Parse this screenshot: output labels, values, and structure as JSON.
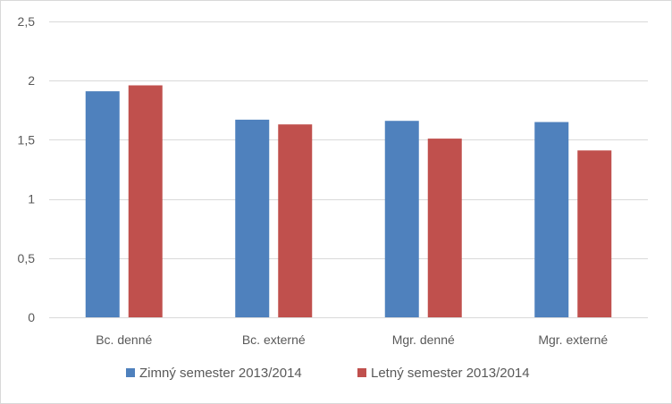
{
  "chart_data": {
    "type": "bar",
    "title": "",
    "xlabel": "",
    "ylabel": "",
    "categories": [
      "Bc. denné",
      "Bc. externé",
      "Mgr. denné",
      "Mgr. externé"
    ],
    "series": [
      {
        "name": "Zimný semester 2013/2014",
        "color": "#4f81bd",
        "values": [
          1.91,
          1.67,
          1.66,
          1.65
        ]
      },
      {
        "name": "Letný semester 2013/2014",
        "color": "#c0504d",
        "values": [
          1.96,
          1.63,
          1.51,
          1.41
        ]
      }
    ],
    "ylim": [
      0,
      2.5
    ],
    "yticks": [
      "0",
      "0,5",
      "1",
      "1,5",
      "2",
      "2,5"
    ],
    "ytick_values": [
      0,
      0.5,
      1,
      1.5,
      2,
      2.5
    ],
    "grid": true,
    "legend_position": "bottom"
  }
}
